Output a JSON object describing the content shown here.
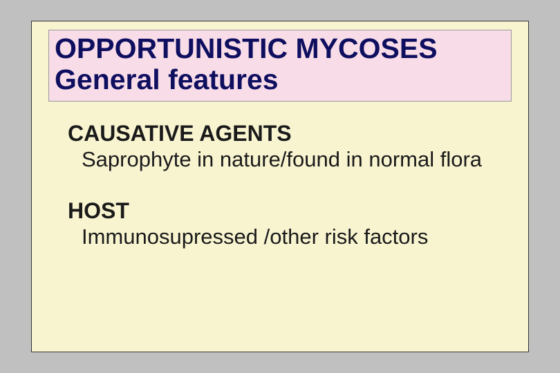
{
  "colors": {
    "page_bg": "#c0c0c0",
    "slide_bg": "#f8f4d0",
    "title_bg": "#f8dce8",
    "title_text": "#0f0f60",
    "body_text": "#1a1a1a"
  },
  "title": {
    "line1": "OPPORTUNISTIC MYCOSES",
    "line2": "General features"
  },
  "sections": [
    {
      "heading": "CAUSATIVE AGENTS",
      "body": "Saprophyte in nature/found in normal flora"
    },
    {
      "heading": "HOST",
      "body": "Immunosupressed /other risk factors"
    }
  ]
}
